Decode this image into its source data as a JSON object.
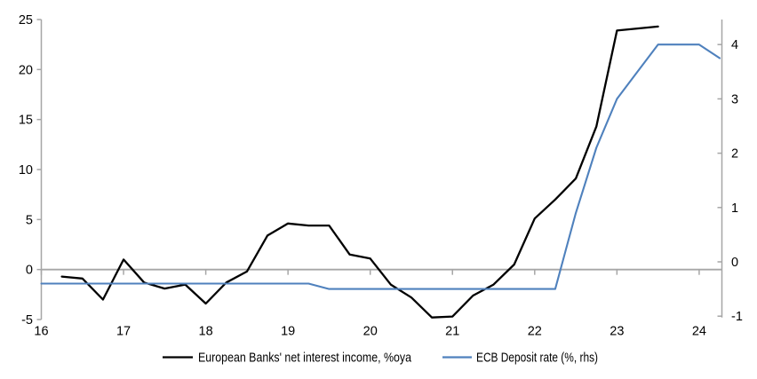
{
  "chart_data": {
    "type": "line",
    "title": "",
    "x_axis": {
      "tick_labels": [
        "16",
        "17",
        "18",
        "19",
        "20",
        "21",
        "22",
        "23",
        "24"
      ],
      "tick_values": [
        16,
        17,
        18,
        19,
        20,
        21,
        22,
        23,
        24
      ],
      "range": [
        16,
        24.28
      ]
    },
    "left_y_axis": {
      "tick_values": [
        -5,
        0,
        5,
        10,
        15,
        20,
        25
      ],
      "range": [
        -5,
        25
      ]
    },
    "right_y_axis": {
      "tick_values": [
        -1,
        0,
        1,
        2,
        3,
        4
      ],
      "range": [
        -1,
        4.45
      ]
    },
    "grid": "zero-line-only",
    "legend_position": "bottom",
    "series": [
      {
        "name": "European Banks' net interest income, %oya",
        "axis": "left",
        "color": "#000000",
        "x": [
          16.25,
          16.5,
          16.75,
          17.0,
          17.25,
          17.5,
          17.75,
          18.0,
          18.25,
          18.5,
          18.75,
          19.0,
          19.25,
          19.5,
          19.75,
          20.0,
          20.25,
          20.5,
          20.75,
          21.0,
          21.25,
          21.5,
          21.75,
          22.0,
          22.25,
          22.5,
          22.75,
          23.0,
          23.25,
          23.5
        ],
        "values": [
          -0.7,
          -0.9,
          -3.0,
          1.0,
          -1.3,
          -1.9,
          -1.5,
          -3.4,
          -1.3,
          -0.2,
          3.4,
          4.6,
          4.4,
          4.4,
          1.5,
          1.1,
          -1.5,
          -2.8,
          -4.8,
          -4.7,
          -2.6,
          -1.5,
          0.5,
          5.1,
          7.0,
          9.1,
          14.3,
          23.9,
          24.1,
          24.3
        ]
      },
      {
        "name": "ECB Deposit rate (%, rhs)",
        "axis": "right",
        "color": "#4f81bd",
        "x": [
          16.0,
          16.25,
          16.5,
          16.75,
          17.0,
          17.25,
          17.5,
          17.75,
          18.0,
          18.25,
          18.5,
          18.75,
          19.0,
          19.25,
          19.5,
          19.75,
          20.0,
          20.25,
          20.5,
          20.75,
          21.0,
          21.25,
          21.5,
          21.75,
          22.0,
          22.25,
          22.5,
          22.75,
          23.0,
          23.25,
          23.5,
          23.75,
          24.0,
          24.25
        ],
        "values": [
          -0.4,
          -0.4,
          -0.4,
          -0.4,
          -0.4,
          -0.4,
          -0.4,
          -0.4,
          -0.4,
          -0.4,
          -0.4,
          -0.4,
          -0.4,
          -0.4,
          -0.5,
          -0.5,
          -0.5,
          -0.5,
          -0.5,
          -0.5,
          -0.5,
          -0.5,
          -0.5,
          -0.5,
          -0.5,
          -0.5,
          0.9,
          2.1,
          3.0,
          3.5,
          4.0,
          4.0,
          4.0,
          3.75
        ]
      }
    ]
  },
  "colors": {
    "axis_gray": "#a6a6a6",
    "nii_line": "#000000",
    "ecb_line": "#4f81bd"
  }
}
